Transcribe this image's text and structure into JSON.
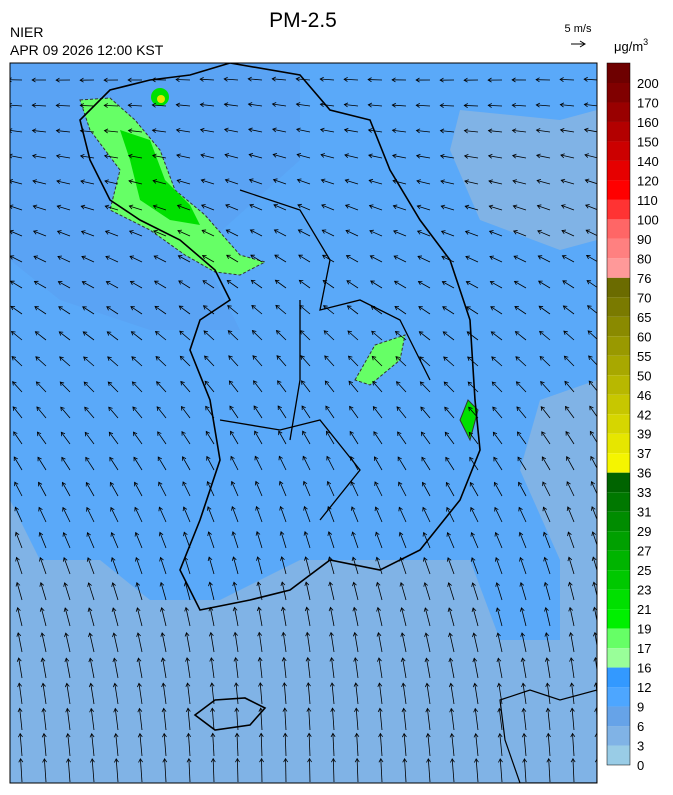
{
  "header": {
    "title": "PM-2.5",
    "source": "NIER",
    "datetime": "APR 09 2026 12:00 KST",
    "wind_scale": "5 m/s"
  },
  "colorbar": {
    "unit": {
      "base": "μg/m",
      "sup": "3"
    },
    "labels": [
      200,
      170,
      160,
      150,
      140,
      120,
      110,
      100,
      90,
      80,
      76,
      70,
      65,
      60,
      55,
      50,
      46,
      42,
      39,
      37,
      36,
      33,
      31,
      29,
      27,
      25,
      23,
      21,
      19,
      17,
      16,
      12,
      9,
      6,
      3,
      0
    ],
    "colors": [
      "#6e0000",
      "#800000",
      "#990000",
      "#b30000",
      "#cc0000",
      "#e60000",
      "#ff0000",
      "#ff3333",
      "#ff6666",
      "#ff8080",
      "#ff9999",
      "#6b6b00",
      "#7a7a00",
      "#8a8a00",
      "#999900",
      "#a8a800",
      "#b8b800",
      "#c7c700",
      "#d6d600",
      "#e6e600",
      "#f5f500",
      "#006400",
      "#007800",
      "#008c00",
      "#00a000",
      "#00b400",
      "#00c800",
      "#00e000",
      "#00f000",
      "#66ff66",
      "#99ff99",
      "#3399ff",
      "#4da6ff",
      "#66a3e8",
      "#80b3e6",
      "#99cce6"
    ]
  }
}
